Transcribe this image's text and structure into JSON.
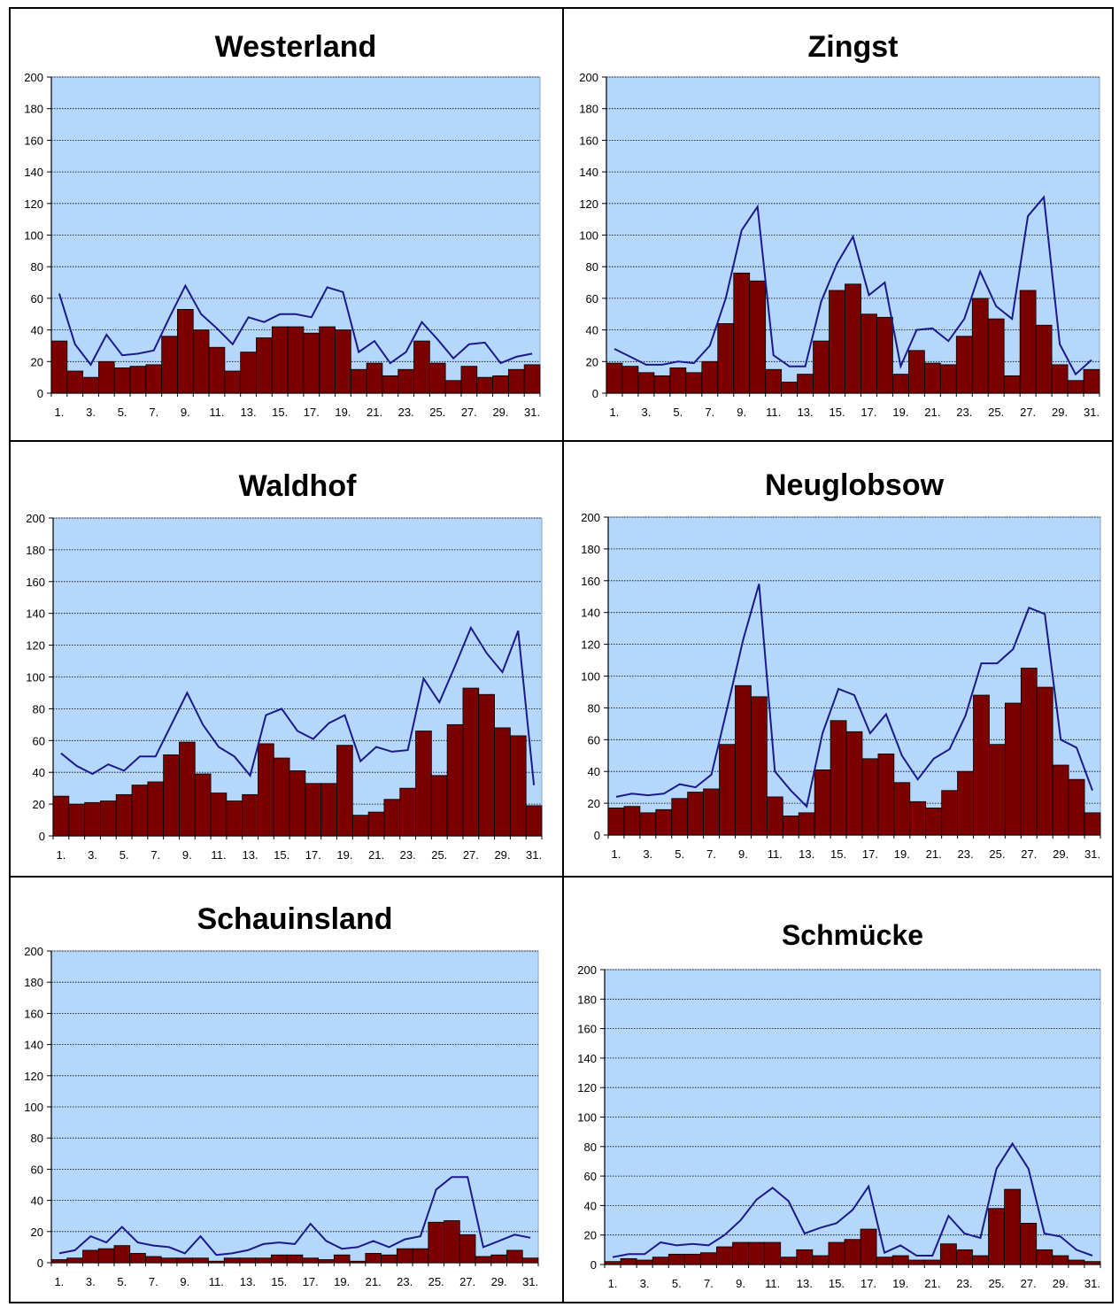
{
  "colors": {
    "plot_background": "#b4d7fb",
    "bar_fill": "#7a0000",
    "bar_stroke": "#000000",
    "line": "#1a1a8c",
    "gridline": "#000000"
  },
  "chart_data": [
    {
      "type": "bar",
      "title": "Westerland",
      "ylim": [
        0,
        200
      ],
      "yticks": [
        0,
        20,
        40,
        60,
        80,
        100,
        120,
        140,
        160,
        180,
        200
      ],
      "xticks": [
        "1.",
        "3.",
        "5.",
        "7.",
        "9.",
        "11.",
        "13.",
        "15.",
        "17.",
        "19.",
        "21.",
        "23.",
        "25.",
        "27.",
        "29.",
        "31."
      ],
      "grid": true,
      "categories": [
        1,
        2,
        3,
        4,
        5,
        6,
        7,
        8,
        9,
        10,
        11,
        12,
        13,
        14,
        15,
        16,
        17,
        18,
        19,
        20,
        21,
        22,
        23,
        24,
        25,
        26,
        27,
        28,
        29,
        30,
        31
      ],
      "series": [
        {
          "type": "bar",
          "values": [
            33,
            14,
            10,
            20,
            16,
            17,
            18,
            36,
            53,
            40,
            29,
            14,
            26,
            35,
            42,
            42,
            38,
            42,
            40,
            15,
            19,
            11,
            15,
            33,
            19,
            8,
            17,
            10,
            11,
            15,
            18
          ]
        },
        {
          "type": "line",
          "values": [
            63,
            31,
            18,
            37,
            24,
            25,
            27,
            48,
            68,
            50,
            41,
            31,
            48,
            45,
            50,
            50,
            48,
            67,
            64,
            26,
            33,
            19,
            26,
            45,
            34,
            22,
            31,
            32,
            19,
            23,
            25
          ]
        }
      ]
    },
    {
      "type": "bar",
      "title": "Zingst",
      "ylim": [
        0,
        200
      ],
      "yticks": [
        0,
        20,
        40,
        60,
        80,
        100,
        120,
        140,
        160,
        180,
        200
      ],
      "xticks": [
        "1.",
        "3.",
        "5.",
        "7.",
        "9.",
        "11.",
        "13.",
        "15.",
        "17.",
        "19.",
        "21.",
        "23.",
        "25.",
        "27.",
        "29.",
        "31."
      ],
      "grid": true,
      "categories": [
        1,
        2,
        3,
        4,
        5,
        6,
        7,
        8,
        9,
        10,
        11,
        12,
        13,
        14,
        15,
        16,
        17,
        18,
        19,
        20,
        21,
        22,
        23,
        24,
        25,
        26,
        27,
        28,
        29,
        30,
        31
      ],
      "series": [
        {
          "type": "bar",
          "values": [
            19,
            17,
            13,
            11,
            16,
            13,
            20,
            44,
            76,
            71,
            15,
            7,
            12,
            33,
            65,
            69,
            50,
            48,
            12,
            27,
            19,
            18,
            36,
            60,
            47,
            11,
            65,
            43,
            18,
            8,
            15
          ]
        },
        {
          "type": "line",
          "values": [
            28,
            23,
            18,
            18,
            20,
            19,
            30,
            60,
            103,
            118,
            24,
            17,
            17,
            58,
            82,
            99,
            62,
            70,
            17,
            40,
            41,
            33,
            47,
            77,
            55,
            47,
            112,
            124,
            31,
            12,
            21
          ]
        }
      ]
    },
    {
      "type": "bar",
      "title": "Waldhof",
      "ylim": [
        0,
        200
      ],
      "yticks": [
        0,
        20,
        40,
        60,
        80,
        100,
        120,
        140,
        160,
        180,
        200
      ],
      "xticks": [
        "1.",
        "3.",
        "5.",
        "7.",
        "9.",
        "11.",
        "13.",
        "15.",
        "17.",
        "19.",
        "21.",
        "23.",
        "25.",
        "27.",
        "29.",
        "31."
      ],
      "grid": true,
      "categories": [
        1,
        2,
        3,
        4,
        5,
        6,
        7,
        8,
        9,
        10,
        11,
        12,
        13,
        14,
        15,
        16,
        17,
        18,
        19,
        20,
        21,
        22,
        23,
        24,
        25,
        26,
        27,
        28,
        29,
        30,
        31
      ],
      "series": [
        {
          "type": "bar",
          "values": [
            25,
            20,
            21,
            22,
            26,
            32,
            34,
            51,
            59,
            39,
            27,
            22,
            26,
            58,
            49,
            41,
            33,
            33,
            57,
            13,
            15,
            23,
            30,
            66,
            38,
            70,
            93,
            89,
            68,
            63,
            19
          ]
        },
        {
          "type": "line",
          "values": [
            52,
            44,
            39,
            45,
            41,
            50,
            50,
            70,
            90,
            70,
            56,
            50,
            38,
            76,
            80,
            66,
            61,
            71,
            76,
            47,
            56,
            53,
            54,
            99,
            84,
            107,
            131,
            115,
            103,
            129,
            32
          ]
        }
      ]
    },
    {
      "type": "bar",
      "title": "Neuglobsow",
      "ylim": [
        0,
        200
      ],
      "yticks": [
        0,
        20,
        40,
        60,
        80,
        100,
        120,
        140,
        160,
        180,
        200
      ],
      "xticks": [
        "1.",
        "3.",
        "5.",
        "7.",
        "9.",
        "11.",
        "13.",
        "15.",
        "17.",
        "19.",
        "21.",
        "23.",
        "25.",
        "27.",
        "29.",
        "31."
      ],
      "grid": true,
      "categories": [
        1,
        2,
        3,
        4,
        5,
        6,
        7,
        8,
        9,
        10,
        11,
        12,
        13,
        14,
        15,
        16,
        17,
        18,
        19,
        20,
        21,
        22,
        23,
        24,
        25,
        26,
        27,
        28,
        29,
        30,
        31
      ],
      "series": [
        {
          "type": "bar",
          "values": [
            17,
            18,
            14,
            16,
            23,
            27,
            29,
            57,
            94,
            87,
            24,
            12,
            14,
            41,
            72,
            65,
            48,
            51,
            33,
            21,
            17,
            28,
            40,
            88,
            57,
            83,
            105,
            93,
            44,
            35,
            14
          ]
        },
        {
          "type": "line",
          "values": [
            24,
            26,
            25,
            26,
            32,
            30,
            38,
            80,
            123,
            158,
            40,
            28,
            18,
            64,
            92,
            88,
            64,
            76,
            50,
            35,
            48,
            54,
            75,
            108,
            108,
            117,
            143,
            139,
            60,
            55,
            28
          ]
        }
      ]
    },
    {
      "type": "bar",
      "title": "Schauinsland",
      "ylim": [
        0,
        200
      ],
      "yticks": [
        0,
        20,
        40,
        60,
        80,
        100,
        120,
        140,
        160,
        180,
        200
      ],
      "xticks": [
        "1.",
        "3.",
        "5.",
        "7.",
        "9.",
        "11.",
        "13.",
        "15.",
        "17.",
        "19.",
        "21.",
        "23.",
        "25.",
        "27.",
        "29.",
        "31."
      ],
      "grid": true,
      "categories": [
        1,
        2,
        3,
        4,
        5,
        6,
        7,
        8,
        9,
        10,
        11,
        12,
        13,
        14,
        15,
        16,
        17,
        18,
        19,
        20,
        21,
        22,
        23,
        24,
        25,
        26,
        27,
        28,
        29,
        30,
        31
      ],
      "series": [
        {
          "type": "bar",
          "values": [
            2,
            3,
            8,
            9,
            11,
            6,
            4,
            3,
            3,
            3,
            1,
            3,
            3,
            3,
            5,
            5,
            3,
            2,
            5,
            1,
            6,
            5,
            9,
            9,
            26,
            27,
            18,
            4,
            5,
            8,
            3
          ]
        },
        {
          "type": "line",
          "values": [
            6,
            8,
            17,
            13,
            23,
            13,
            11,
            10,
            6,
            17,
            5,
            6,
            8,
            12,
            13,
            12,
            25,
            14,
            9,
            10,
            14,
            10,
            15,
            17,
            47,
            55,
            55,
            10,
            14,
            18,
            16
          ]
        }
      ]
    },
    {
      "type": "bar",
      "title": "Schmücke",
      "ylim": [
        0,
        200
      ],
      "yticks": [
        0,
        20,
        40,
        60,
        80,
        100,
        120,
        140,
        160,
        180,
        200
      ],
      "xticks": [
        "1.",
        "3.",
        "5.",
        "7.",
        "9.",
        "11.",
        "13.",
        "15.",
        "17.",
        "19.",
        "21.",
        "23.",
        "25.",
        "27.",
        "29.",
        "31."
      ],
      "grid": true,
      "categories": [
        1,
        2,
        3,
        4,
        5,
        6,
        7,
        8,
        9,
        10,
        11,
        12,
        13,
        14,
        15,
        16,
        17,
        18,
        19,
        20,
        21,
        22,
        23,
        24,
        25,
        26,
        27,
        28,
        29,
        30,
        31
      ],
      "series": [
        {
          "type": "bar",
          "values": [
            2,
            4,
            3,
            5,
            7,
            7,
            8,
            12,
            15,
            15,
            15,
            5,
            10,
            6,
            15,
            17,
            24,
            5,
            6,
            3,
            3,
            14,
            10,
            6,
            38,
            51,
            28,
            10,
            6,
            3,
            2
          ]
        },
        {
          "type": "line",
          "values": [
            5,
            7,
            7,
            15,
            13,
            14,
            13,
            20,
            30,
            44,
            52,
            43,
            21,
            25,
            28,
            37,
            53,
            8,
            13,
            6,
            6,
            33,
            21,
            18,
            65,
            82,
            65,
            21,
            19,
            10,
            6
          ]
        }
      ]
    }
  ]
}
